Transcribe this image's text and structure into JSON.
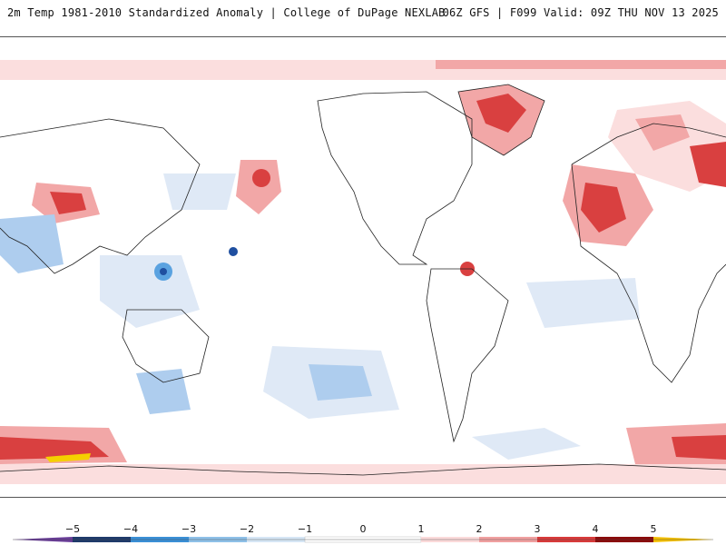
{
  "header": {
    "left_title": "2m Temp 1981-2010 Standardized Anomaly | College of DuPage NEXLAB",
    "right_title": "06Z GFS | F099 Valid: 09Z THU NOV 13 2025"
  },
  "colorbar": {
    "ticks": [
      "−5",
      "−4",
      "−3",
      "−2",
      "−1",
      "0",
      "1",
      "2",
      "3",
      "4",
      "5"
    ],
    "colors": [
      "#6a3d9a",
      "#1f3a6b",
      "#3a8fd6",
      "#8ec0e8",
      "#d6e6f5",
      "#ffffff",
      "#fbdada",
      "#f0a0a0",
      "#d83a3a",
      "#8b0a0a",
      "#f5c000"
    ]
  },
  "map": {
    "colors": {
      "ocean": "#ffffff",
      "pale_blue": "#dfe9f6",
      "light_blue": "#aecdee",
      "mid_blue": "#5aa2e0",
      "deep_blue": "#1f4fa0",
      "pale_red": "#fbdede",
      "light_red": "#f2a7a7",
      "mid_red": "#d94040",
      "deep_red": "#a00f12",
      "yellow": "#f5d000",
      "coast": "#222222"
    }
  }
}
